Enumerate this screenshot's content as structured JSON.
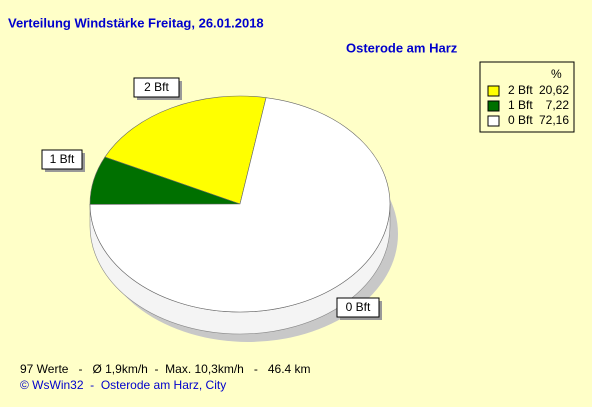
{
  "chart_data": {
    "type": "pie3d",
    "title": "Verteilung Windstärke  Freitag, 26.01.2018",
    "subtitle": "Osterode am Harz",
    "legend_title": "%",
    "categories": [
      "2 Bft",
      "1 Bft",
      "0 Bft"
    ],
    "values": [
      20.62,
      7.22,
      72.16
    ],
    "value_labels": [
      "20,62",
      "7,22",
      "72,16"
    ],
    "colors": [
      "#ffff00",
      "#007000",
      "#ffffff"
    ],
    "legend": "top-right",
    "footer": "97 Werte   -   Ø 1,9km/h  -  Max. 10,3km/h   -   46.4 km",
    "copyright": "© WsWin32  -  Osterode am Harz, City"
  }
}
